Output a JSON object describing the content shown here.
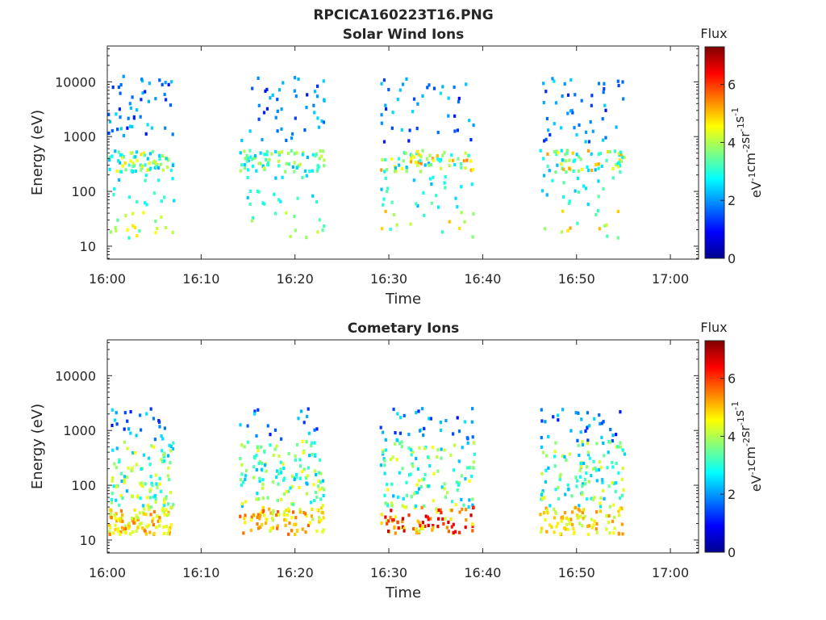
{
  "figure": {
    "title": "RPCICA160223T16.PNG"
  },
  "chart_data": [
    {
      "type": "heatmap",
      "title": "Solar Wind Ions",
      "xlabel": "Time",
      "ylabel": "Energy (eV)",
      "xlim": [
        "16:00",
        "17:03"
      ],
      "ylim": [
        5.8,
        45000
      ],
      "y_scale": "log",
      "x_ticks": [
        "16:00",
        "16:10",
        "16:20",
        "16:30",
        "16:40",
        "16:50",
        "17:00"
      ],
      "y_ticks": [
        "10",
        "100",
        "1000",
        "10000"
      ],
      "colorbar": {
        "title": "Flux",
        "label": "eV-1cm-2sr-1s-1",
        "range": [
          0,
          7.3
        ],
        "ticks": [
          "0",
          "2",
          "4",
          "6"
        ]
      },
      "grid": false,
      "bursts": [
        {
          "start": "16:00",
          "end": "16:07",
          "max_flux": 4.8
        },
        {
          "start": "16:14",
          "end": "16:23",
          "max_flux": 4.2
        },
        {
          "start": "16:29",
          "end": "16:39",
          "max_flux": 5.5
        },
        {
          "start": "16:46",
          "end": "16:55",
          "max_flux": 5.3
        }
      ]
    },
    {
      "type": "heatmap",
      "title": "Cometary Ions",
      "xlabel": "Time",
      "ylabel": "Energy (eV)",
      "xlim": [
        "16:00",
        "17:03"
      ],
      "ylim": [
        5.8,
        45000
      ],
      "y_scale": "log",
      "x_ticks": [
        "16:00",
        "16:10",
        "16:20",
        "16:30",
        "16:40",
        "16:50",
        "17:00"
      ],
      "y_ticks": [
        "10",
        "100",
        "1000",
        "10000"
      ],
      "colorbar": {
        "title": "Flux",
        "label": "eV-1cm-2sr-1s-1",
        "range": [
          0,
          7.3
        ],
        "ticks": [
          "0",
          "2",
          "4",
          "6"
        ]
      },
      "grid": false,
      "bursts": [
        {
          "start": "16:00",
          "end": "16:07",
          "max_flux": 5.6
        },
        {
          "start": "16:14",
          "end": "16:23",
          "max_flux": 5.8
        },
        {
          "start": "16:29",
          "end": "16:39",
          "max_flux": 6.9
        },
        {
          "start": "16:46",
          "end": "16:55",
          "max_flux": 5.4
        }
      ]
    }
  ]
}
